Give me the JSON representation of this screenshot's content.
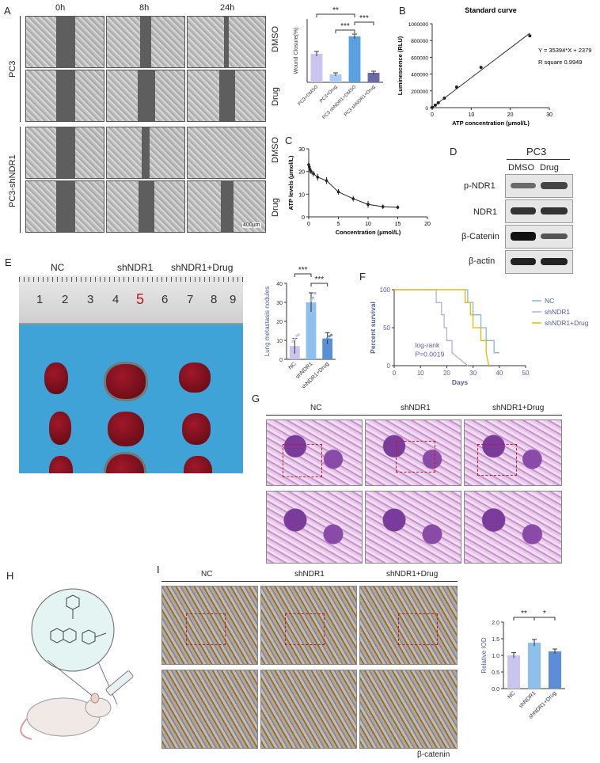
{
  "panelA": {
    "letter": "A",
    "time_labels": [
      "0h",
      "8h",
      "24h"
    ],
    "row_groups": [
      "PC3",
      "PC3-shNDR1"
    ],
    "condition_labels": [
      "DMSO",
      "Drug",
      "DMSO",
      "Drug"
    ],
    "scale_bar": "400μm"
  },
  "panelA_bar": {
    "chart_data": {
      "type": "bar",
      "categories": [
        "PC3+DMSO",
        "PC3+Drug",
        "PC3 shNDR1+DMSO",
        "PC3 shNDR1+Drug"
      ],
      "values": [
        36,
        10,
        58,
        12
      ],
      "errors": [
        3,
        2,
        3,
        2
      ],
      "colors": [
        "#c9c5ef",
        "#a9cdf3",
        "#5aa1e0",
        "#6a6aa8"
      ],
      "ylabel": "Wound Closure(%)",
      "ylim": [
        0,
        80
      ],
      "significance": [
        "***",
        "**",
        "***"
      ]
    }
  },
  "panelB": {
    "letter": "B",
    "chart_data": {
      "type": "scatter",
      "title": "Standard curve",
      "xlabel": "ATP concentration (μmol/L)",
      "ylabel": "Luminescence (RLU)",
      "x": [
        0,
        0.78,
        1.56,
        3.125,
        6.25,
        12.5,
        25
      ],
      "y": [
        2379,
        30000,
        58000,
        113000,
        245000,
        480000,
        856000
      ],
      "xlim": [
        0,
        30
      ],
      "ylim": [
        0,
        1000000
      ],
      "xticks": [
        "0",
        "10",
        "20",
        "30"
      ],
      "yticks": [
        "0",
        "200000",
        "400000",
        "600000",
        "800000",
        "1000000"
      ],
      "equation": "Y = 35394*X + 2379",
      "r_square": "R square   0.9949"
    }
  },
  "panelC": {
    "letter": "C",
    "chart_data": {
      "type": "line",
      "xlabel": "Concentration (μmol/L)",
      "ylabel": "ATP levels (μmol/L)",
      "x": [
        0,
        0.1,
        0.2,
        0.4,
        0.8,
        1.5,
        3,
        5,
        7.5,
        10,
        12.5,
        15
      ],
      "y": [
        23,
        22,
        21,
        20,
        19,
        17.5,
        16,
        11,
        8,
        5.5,
        4.5,
        4.2
      ],
      "errors": [
        1.5,
        1.5,
        1.5,
        1.2,
        1.2,
        1.5,
        1.5,
        1.2,
        1.2,
        1.5,
        1,
        0.8
      ],
      "xlim": [
        0,
        20
      ],
      "ylim": [
        0,
        30
      ],
      "xticks": [
        "0",
        "5",
        "10",
        "15",
        "20"
      ],
      "yticks": [
        "0",
        "10",
        "20",
        "30"
      ]
    }
  },
  "panelD": {
    "letter": "D",
    "cell_line": "PC3",
    "lanes": [
      "DMSO",
      "Drug"
    ],
    "proteins": [
      "p-NDR1",
      "NDR1",
      "β-Catenin",
      "β-actin"
    ]
  },
  "panelE": {
    "letter": "E",
    "groups": [
      "NC",
      "shNDR1",
      "shNDR1+Drug"
    ],
    "ruler_numbers": [
      "1",
      "2",
      "3",
      "4",
      "5",
      "6",
      "7",
      "8",
      "9"
    ]
  },
  "panelE_bar": {
    "chart_data": {
      "type": "bar",
      "categories": [
        "NC",
        "shNDR1",
        "shNDR1+Drug"
      ],
      "values": [
        7,
        30,
        11
      ],
      "errors": [
        4,
        5,
        3
      ],
      "colors": [
        "#c9c5ef",
        "#8ec0ee",
        "#5a8fd6"
      ],
      "ylabel": "Lung metastasis nodules",
      "ylim": [
        0,
        40
      ],
      "yticks": [
        "0",
        "10",
        "20",
        "30",
        "40"
      ],
      "significance": [
        "***",
        "***"
      ]
    }
  },
  "panelF": {
    "letter": "F",
    "chart_data": {
      "type": "line",
      "ylabel": "Percent survival",
      "xlabel": "Days",
      "xlim": [
        0,
        50
      ],
      "ylim": [
        0,
        100
      ],
      "xticks": [
        "0",
        "10",
        "20",
        "30",
        "40",
        "50"
      ],
      "yticks": [
        "0",
        "50",
        "100"
      ],
      "series": [
        {
          "name": "NC",
          "color": "#7fb8e6",
          "x": [
            0,
            28,
            28,
            30,
            30,
            33,
            33,
            35,
            35,
            38,
            38,
            40
          ],
          "y": [
            100,
            100,
            83,
            83,
            67,
            67,
            50,
            50,
            33,
            33,
            17,
            17
          ]
        },
        {
          "name": "shNDR1",
          "color": "#b3b0e0",
          "x": [
            0,
            16,
            16,
            18,
            18,
            19,
            19,
            20,
            20,
            22,
            22,
            28
          ],
          "y": [
            100,
            100,
            83,
            83,
            67,
            67,
            50,
            50,
            33,
            33,
            17,
            0
          ]
        },
        {
          "name": "shNDR1+Drug",
          "color": "#e6b800",
          "x": [
            0,
            27,
            27,
            29,
            29,
            30,
            30,
            33,
            33,
            35,
            35,
            36
          ],
          "y": [
            100,
            100,
            83,
            83,
            67,
            67,
            50,
            50,
            33,
            33,
            17,
            0
          ]
        }
      ],
      "annotation_1": "log-rank",
      "annotation_2": "P=0.0019"
    }
  },
  "panelG": {
    "letter": "G",
    "groups": [
      "NC",
      "shNDR1",
      "shNDR1+Drug"
    ]
  },
  "panelH": {
    "letter": "H"
  },
  "panelI": {
    "letter": "I",
    "groups": [
      "NC",
      "shNDR1",
      "shNDR1+Drug"
    ],
    "stain_label": "β-catenin"
  },
  "panelI_bar": {
    "chart_data": {
      "type": "bar",
      "categories": [
        "NC",
        "shNDR1",
        "shNDR1+Drug"
      ],
      "values": [
        1.0,
        1.38,
        1.12
      ],
      "errors": [
        0.08,
        0.1,
        0.07
      ],
      "colors": [
        "#c9c5ef",
        "#8ec0ee",
        "#5a8fd6"
      ],
      "ylabel": "Relative IOD",
      "ylim": [
        0,
        2.0
      ],
      "yticks": [
        "0.0",
        "0.5",
        "1.0",
        "1.5",
        "2.0"
      ],
      "significance": [
        "**",
        "*"
      ]
    }
  }
}
